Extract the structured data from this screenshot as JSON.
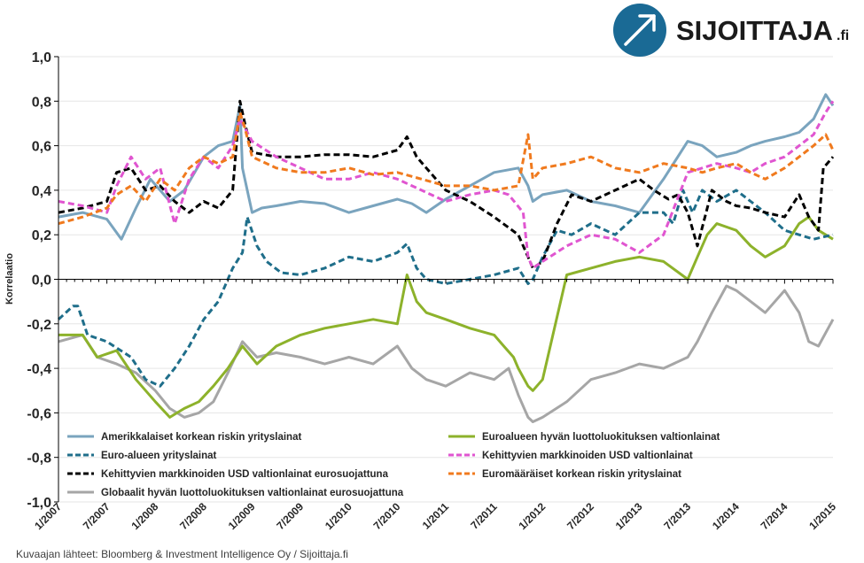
{
  "brand": {
    "name": "SIJOITTAJA",
    "suffix": ".fi",
    "accent": "#1a6a95"
  },
  "source": "Kuvaajan lähteet: Bloomberg & Investment Intelligence Oy / Sijoittaja.fi",
  "chart_data": {
    "type": "line",
    "title": "",
    "ylabel": "Korrelaatio",
    "xlabel": "",
    "ylim": [
      -1.0,
      1.0
    ],
    "yticks": [
      "1,0",
      "0,8",
      "0,6",
      "0,4",
      "0,2",
      "0,0",
      "-0,2",
      "-0,4",
      "-0,6",
      "-0,8",
      "-1,0"
    ],
    "ytick_values": [
      1.0,
      0.8,
      0.6,
      0.4,
      0.2,
      0.0,
      -0.2,
      -0.4,
      -0.6,
      -0.8,
      -1.0
    ],
    "xlim": [
      0,
      16
    ],
    "xticks": [
      "1/2007",
      "7/2007",
      "1/2008",
      "7/2008",
      "1/2009",
      "7/2009",
      "1/2010",
      "7/2010",
      "1/2011",
      "7/2011",
      "1/2012",
      "7/2012",
      "1/2013",
      "7/2013",
      "1/2014",
      "7/2014",
      "1/2015"
    ],
    "series": [
      {
        "name": "Amerikkalaiset korkean riskin yrityslainat",
        "color": "#7aa4be",
        "dash": "solid",
        "x": [
          0,
          0.5,
          1,
          1.3,
          1.6,
          1.9,
          2.3,
          2.6,
          3.0,
          3.3,
          3.6,
          3.75,
          3.8,
          3.85,
          4.0,
          4.2,
          4.5,
          5,
          5.5,
          6,
          6.5,
          7,
          7.3,
          7.6,
          8,
          8.5,
          9,
          9.5,
          9.7,
          9.8,
          10,
          10.5,
          11,
          11.5,
          12,
          12.5,
          13,
          13.3,
          13.6,
          14,
          14.3,
          14.6,
          15,
          15.3,
          15.6,
          15.85,
          16
        ],
        "y": [
          0.28,
          0.3,
          0.27,
          0.18,
          0.32,
          0.45,
          0.35,
          0.4,
          0.55,
          0.6,
          0.62,
          0.78,
          0.5,
          0.45,
          0.3,
          0.32,
          0.33,
          0.35,
          0.34,
          0.3,
          0.33,
          0.36,
          0.34,
          0.3,
          0.36,
          0.42,
          0.48,
          0.5,
          0.42,
          0.35,
          0.38,
          0.4,
          0.35,
          0.33,
          0.3,
          0.45,
          0.62,
          0.6,
          0.55,
          0.57,
          0.6,
          0.62,
          0.64,
          0.66,
          0.72,
          0.83,
          0.78
        ]
      },
      {
        "name": "Euro-alueen yrityslainat",
        "color": "#1f6e8a",
        "dash": "dash",
        "x": [
          0,
          0.3,
          0.4,
          0.6,
          1,
          1.5,
          1.8,
          2.1,
          2.4,
          2.7,
          3.0,
          3.3,
          3.6,
          3.8,
          3.9,
          4.1,
          4.3,
          4.6,
          5,
          5.5,
          6,
          6.5,
          7,
          7.2,
          7.4,
          7.6,
          8,
          8.5,
          9,
          9.5,
          9.7,
          9.8,
          10,
          10.3,
          10.6,
          11,
          11.5,
          12,
          12.5,
          12.7,
          12.9,
          13.1,
          13.3,
          13.6,
          14,
          14.3,
          14.6,
          15,
          15.3,
          15.6,
          16
        ],
        "y": [
          -0.18,
          -0.12,
          -0.12,
          -0.25,
          -0.28,
          -0.35,
          -0.45,
          -0.48,
          -0.4,
          -0.3,
          -0.18,
          -0.1,
          0.05,
          0.12,
          0.28,
          0.15,
          0.08,
          0.03,
          0.02,
          0.05,
          0.1,
          0.08,
          0.12,
          0.16,
          0.05,
          0.0,
          -0.02,
          0.0,
          0.02,
          0.05,
          -0.02,
          0.0,
          0.1,
          0.22,
          0.2,
          0.25,
          0.2,
          0.3,
          0.3,
          0.25,
          0.4,
          0.3,
          0.4,
          0.35,
          0.4,
          0.35,
          0.3,
          0.22,
          0.2,
          0.18,
          0.2
        ]
      },
      {
        "name": "Kehittyvien markkinoiden USD valtionlainat eurosuojattuna",
        "color": "#000000",
        "dash": "dash",
        "x": [
          0,
          0.5,
          1,
          1.2,
          1.5,
          1.8,
          2.1,
          2.4,
          2.7,
          3.0,
          3.3,
          3.6,
          3.75,
          3.85,
          4.0,
          4.5,
          5,
          5.5,
          6,
          6.5,
          7,
          7.2,
          7.4,
          7.6,
          8,
          8.5,
          9,
          9.5,
          9.7,
          9.8,
          10,
          10.3,
          10.6,
          11,
          11.5,
          12,
          12.3,
          12.6,
          12.8,
          13,
          13.2,
          13.5,
          13.8,
          14,
          14.3,
          14.6,
          15,
          15.3,
          15.5,
          15.7,
          15.8,
          16
        ],
        "y": [
          0.3,
          0.32,
          0.35,
          0.48,
          0.5,
          0.4,
          0.42,
          0.35,
          0.3,
          0.35,
          0.32,
          0.4,
          0.8,
          0.7,
          0.57,
          0.55,
          0.55,
          0.56,
          0.56,
          0.55,
          0.58,
          0.64,
          0.55,
          0.5,
          0.4,
          0.35,
          0.28,
          0.2,
          0.1,
          0.05,
          0.08,
          0.25,
          0.38,
          0.35,
          0.4,
          0.45,
          0.4,
          0.36,
          0.38,
          0.3,
          0.15,
          0.4,
          0.35,
          0.33,
          0.32,
          0.3,
          0.28,
          0.38,
          0.28,
          0.22,
          0.5,
          0.55
        ]
      },
      {
        "name": "Globaalit hyvän luottoluokituksen valtionlainat eurosuojattuna",
        "color": "#a6a6a6",
        "dash": "solid",
        "x": [
          0,
          0.5,
          0.8,
          1.2,
          1.6,
          2.0,
          2.3,
          2.6,
          2.9,
          3.2,
          3.5,
          3.8,
          4.1,
          4.5,
          5,
          5.5,
          6,
          6.5,
          7,
          7.3,
          7.6,
          8,
          8.5,
          9,
          9.3,
          9.5,
          9.7,
          9.8,
          10,
          10.5,
          11,
          11.5,
          12,
          12.5,
          13,
          13.2,
          13.5,
          13.8,
          14,
          14.3,
          14.6,
          15,
          15.3,
          15.5,
          15.7,
          16
        ],
        "y": [
          -0.28,
          -0.25,
          -0.35,
          -0.38,
          -0.42,
          -0.5,
          -0.58,
          -0.62,
          -0.6,
          -0.55,
          -0.42,
          -0.28,
          -0.35,
          -0.33,
          -0.35,
          -0.38,
          -0.35,
          -0.38,
          -0.3,
          -0.4,
          -0.45,
          -0.48,
          -0.42,
          -0.45,
          -0.4,
          -0.52,
          -0.62,
          -0.64,
          -0.62,
          -0.55,
          -0.45,
          -0.42,
          -0.38,
          -0.4,
          -0.35,
          -0.28,
          -0.15,
          -0.03,
          -0.05,
          -0.1,
          -0.15,
          -0.05,
          -0.15,
          -0.28,
          -0.3,
          -0.18
        ]
      },
      {
        "name": "Euroalueen hyvän luottoluokituksen valtionlainat",
        "color": "#8db22b",
        "dash": "solid",
        "x": [
          0,
          0.5,
          0.8,
          1.2,
          1.6,
          2.0,
          2.3,
          2.6,
          2.9,
          3.2,
          3.5,
          3.8,
          4.1,
          4.5,
          5,
          5.5,
          6,
          6.5,
          7,
          7.2,
          7.4,
          7.6,
          8,
          8.5,
          9,
          9.2,
          9.4,
          9.5,
          9.7,
          9.8,
          10,
          10.5,
          11,
          11.5,
          12,
          12.5,
          13,
          13.2,
          13.4,
          13.6,
          14,
          14.3,
          14.6,
          15,
          15.3,
          15.5,
          15.7,
          16
        ],
        "y": [
          -0.25,
          -0.25,
          -0.35,
          -0.32,
          -0.45,
          -0.55,
          -0.62,
          -0.58,
          -0.55,
          -0.48,
          -0.4,
          -0.3,
          -0.38,
          -0.3,
          -0.25,
          -0.22,
          -0.2,
          -0.18,
          -0.2,
          0.02,
          -0.1,
          -0.15,
          -0.18,
          -0.22,
          -0.25,
          -0.3,
          -0.35,
          -0.4,
          -0.48,
          -0.5,
          -0.45,
          0.02,
          0.05,
          0.08,
          0.1,
          0.08,
          0.0,
          0.1,
          0.2,
          0.25,
          0.22,
          0.15,
          0.1,
          0.15,
          0.25,
          0.28,
          0.22,
          0.18
        ]
      },
      {
        "name": "Kehittyvien markkinoiden USD valtionlainat",
        "color": "#e055d0",
        "dash": "dash",
        "x": [
          0,
          0.5,
          1,
          1.2,
          1.5,
          1.8,
          2.1,
          2.4,
          2.7,
          3.0,
          3.3,
          3.6,
          3.75,
          3.85,
          4.0,
          4.5,
          5,
          5.5,
          6,
          6.5,
          7,
          7.5,
          8,
          8.5,
          9,
          9.3,
          9.6,
          9.7,
          9.8,
          10,
          10.5,
          11,
          11.5,
          12,
          12.5,
          13,
          13.3,
          13.6,
          14,
          14.3,
          14.6,
          15,
          15.3,
          15.6,
          15.85,
          16
        ],
        "y": [
          0.35,
          0.33,
          0.3,
          0.42,
          0.55,
          0.45,
          0.5,
          0.25,
          0.45,
          0.55,
          0.5,
          0.6,
          0.72,
          0.68,
          0.62,
          0.55,
          0.5,
          0.45,
          0.45,
          0.48,
          0.45,
          0.4,
          0.35,
          0.38,
          0.4,
          0.38,
          0.3,
          0.1,
          0.05,
          0.08,
          0.15,
          0.2,
          0.18,
          0.12,
          0.2,
          0.48,
          0.5,
          0.52,
          0.5,
          0.48,
          0.52,
          0.55,
          0.6,
          0.65,
          0.75,
          0.8
        ]
      },
      {
        "name": "Euromääräiset korkean riskin yrityslainat",
        "color": "#f07a1e",
        "dash": "dash",
        "x": [
          0,
          0.5,
          1,
          1.2,
          1.5,
          1.8,
          2.1,
          2.4,
          2.7,
          3.0,
          3.3,
          3.6,
          3.75,
          3.85,
          4.0,
          4.5,
          5,
          5.5,
          6,
          6.5,
          7,
          7.5,
          8,
          8.5,
          9,
          9.5,
          9.7,
          9.8,
          10,
          10.5,
          11,
          11.5,
          12,
          12.5,
          13,
          13.3,
          13.6,
          14,
          14.3,
          14.6,
          15,
          15.3,
          15.6,
          15.85,
          16
        ],
        "y": [
          0.25,
          0.28,
          0.32,
          0.38,
          0.42,
          0.35,
          0.45,
          0.4,
          0.5,
          0.55,
          0.52,
          0.55,
          0.75,
          0.68,
          0.55,
          0.5,
          0.48,
          0.48,
          0.5,
          0.47,
          0.48,
          0.45,
          0.42,
          0.42,
          0.4,
          0.42,
          0.65,
          0.45,
          0.5,
          0.52,
          0.55,
          0.5,
          0.48,
          0.52,
          0.5,
          0.48,
          0.5,
          0.52,
          0.48,
          0.45,
          0.5,
          0.55,
          0.6,
          0.65,
          0.58
        ]
      }
    ]
  }
}
